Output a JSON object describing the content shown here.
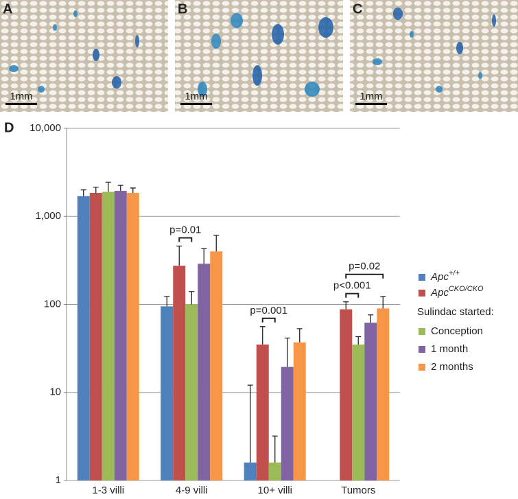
{
  "panels": [
    {
      "letter": "A",
      "scale_bar": "1mm"
    },
    {
      "letter": "B",
      "scale_bar": "1mm"
    },
    {
      "letter": "C",
      "scale_bar": "1mm"
    }
  ],
  "chart_letter": "D",
  "chart_data": {
    "type": "bar",
    "log_scale": true,
    "grid": true,
    "legend": "right",
    "categories": [
      "1-3 villi",
      "4-9 villi",
      "10+ villi",
      "Tumors"
    ],
    "ylim": [
      1,
      10000
    ],
    "yticks": [
      1,
      10,
      100,
      {
        "value": 1000,
        "label": "1,000"
      },
      {
        "value": 10000,
        "label": "10,000"
      }
    ],
    "legend_subheading": "Sulindac started:",
    "series": [
      {
        "name": "Apc",
        "name_superscript": "+/+",
        "color": "#4f81bd",
        "values": [
          1700,
          95,
          1.6,
          null
        ],
        "errors": [
          300,
          28,
          10.5,
          null
        ]
      },
      {
        "name": "Apc",
        "name_superscript": "CKO/CKO",
        "color": "#c0504d",
        "values": [
          1850,
          275,
          35,
          88
        ],
        "errors": [
          300,
          185,
          21,
          19
        ]
      },
      {
        "name": "Conception",
        "color": "#9bbb59",
        "values": [
          1900,
          100,
          1.6,
          35
        ],
        "errors": [
          550,
          40,
          1.6,
          8
        ]
      },
      {
        "name": "1 month",
        "color": "#8064a2",
        "values": [
          1950,
          290,
          19.5,
          62
        ],
        "errors": [
          300,
          140,
          22,
          14
        ]
      },
      {
        "name": "2 months",
        "color": "#f79646",
        "values": [
          1850,
          400,
          37,
          90
        ],
        "errors": [
          250,
          210,
          16,
          33
        ]
      }
    ],
    "annotations": [
      {
        "text": "p=0.01",
        "category": 1,
        "series": [
          1,
          2
        ]
      },
      {
        "text": "p=0.001",
        "category": 2,
        "series": [
          1,
          2
        ]
      },
      {
        "text": "p<0.001",
        "category": 3,
        "series": [
          1,
          2
        ]
      },
      {
        "text": "p=0.02",
        "category": 3,
        "series": [
          1,
          4
        ]
      }
    ]
  }
}
